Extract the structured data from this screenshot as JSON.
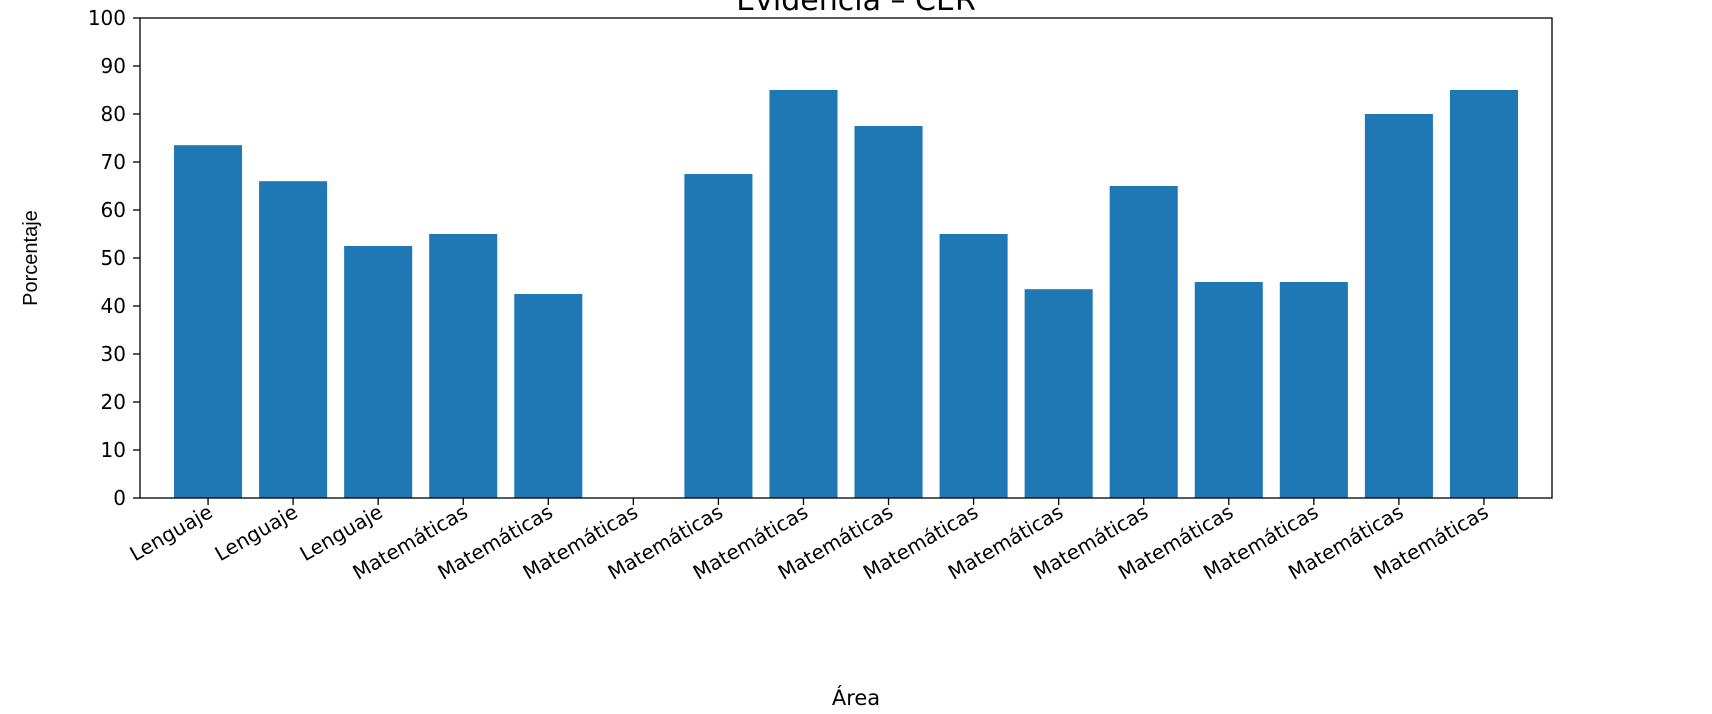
{
  "chart_data": {
    "type": "bar",
    "title": "Evidencia – CER",
    "xlabel": "Área",
    "ylabel": "Porcentaje",
    "ylim": [
      0,
      100
    ],
    "yticks": [
      0,
      10,
      20,
      30,
      40,
      50,
      60,
      70,
      80,
      90,
      100
    ],
    "grid": false,
    "bar_color": "#1f77b4",
    "categories": [
      "Lenguaje",
      "Lenguaje",
      "Lenguaje",
      "Matemáticas",
      "Matemáticas",
      "Matemáticas",
      "Matemáticas",
      "Matemáticas",
      "Matemáticas",
      "Matemáticas",
      "Matemáticas",
      "Matemáticas",
      "Matemáticas",
      "Matemáticas",
      "Matemáticas",
      "Matemáticas"
    ],
    "values": [
      73.5,
      66,
      52.5,
      55,
      42.5,
      0,
      67.5,
      85,
      77.5,
      55,
      43.5,
      65,
      45,
      45,
      80,
      85
    ]
  }
}
